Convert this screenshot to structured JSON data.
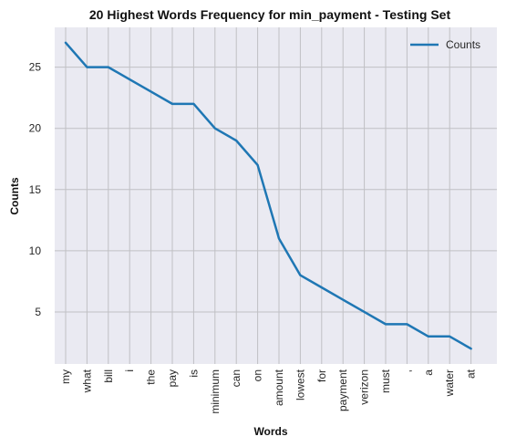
{
  "chart_data": {
    "type": "line",
    "title": "20 Highest Words Frequency for min_payment - Testing Set",
    "xlabel": "Words",
    "ylabel": "Counts",
    "categories": [
      "my",
      "what",
      "bill",
      "i",
      "the",
      "pay",
      "is",
      "minimum",
      "can",
      "on",
      "amount",
      "lowest",
      "for",
      "payment",
      "verizon",
      "must",
      ",",
      "a",
      "water",
      "at"
    ],
    "series": [
      {
        "name": "Counts",
        "values": [
          27,
          25,
          25,
          24,
          23,
          22,
          22,
          20,
          19,
          17,
          11,
          8,
          7,
          6,
          5,
          4,
          4,
          3,
          3,
          2
        ]
      }
    ],
    "ylim": [
      0.75,
      28.25
    ],
    "yticks": [
      5,
      10,
      15,
      20,
      25
    ],
    "grid": true,
    "legend_position": "top-right",
    "line_color": "#1f77b4",
    "plot_background": "#eaeaf2",
    "grid_color": "#c0c0c4"
  }
}
